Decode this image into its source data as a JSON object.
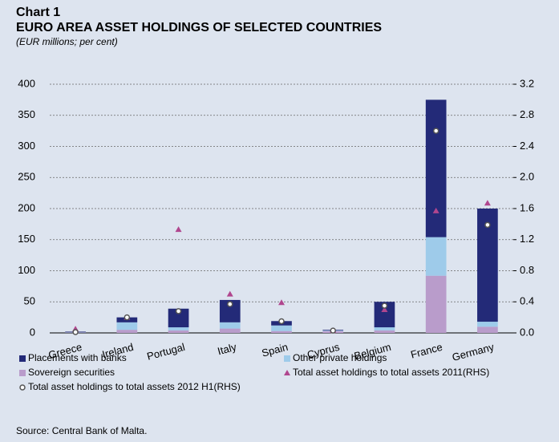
{
  "chart_data": {
    "type": "bar",
    "stacked": true,
    "label": "Chart 1",
    "title": "EURO AREA ASSET HOLDINGS OF SELECTED COUNTRIES",
    "subtitle": "(EUR millions; per cent)",
    "source": "Source: Central Bank of Malta.",
    "categories": [
      "Greece",
      "Ireland",
      "Portugal",
      "Italy",
      "Spain",
      "Cyprus",
      "Belgium",
      "France",
      "Germany"
    ],
    "series": [
      {
        "name": "Sovereign securities",
        "color": "#b99ccb",
        "values": [
          0.5,
          5,
          4,
          7,
          3,
          3,
          4,
          92,
          10
        ]
      },
      {
        "name": "Other private holdings",
        "color": "#9ecbea",
        "values": [
          0.5,
          12,
          5,
          10,
          9,
          1,
          5,
          62,
          8
        ]
      },
      {
        "name": "Placements with banks",
        "color": "#232a78",
        "values": [
          1,
          8,
          30,
          36,
          7,
          1,
          41,
          221,
          182
        ]
      },
      {
        "name": "Total asset holdings to total assets 2011(RHS)",
        "color": "#b0468e",
        "marker": "triangle",
        "axis": "y2",
        "values": [
          0.05,
          0.2,
          1.33,
          0.5,
          0.39,
          0.03,
          0.3,
          1.57,
          1.67
        ]
      },
      {
        "name": "Total asset holdings to total assets 2012 H1(RHS)",
        "color": "#555555",
        "marker": "circle",
        "axis": "y2",
        "values": [
          0.01,
          0.2,
          0.28,
          0.37,
          0.15,
          0.03,
          0.35,
          2.6,
          1.39
        ]
      }
    ],
    "ylim": [
      0,
      400
    ],
    "yticks": [
      0,
      50,
      100,
      150,
      200,
      250,
      300,
      350,
      400
    ],
    "y2lim": [
      0,
      3.2
    ],
    "y2ticks": [
      {
        "value": 0,
        "label": "0.0"
      },
      0.4,
      0.8,
      1.2,
      1.6,
      {
        "value": 2,
        "label": "2.0"
      },
      2.4,
      2.8,
      3.2
    ],
    "grid": true
  }
}
